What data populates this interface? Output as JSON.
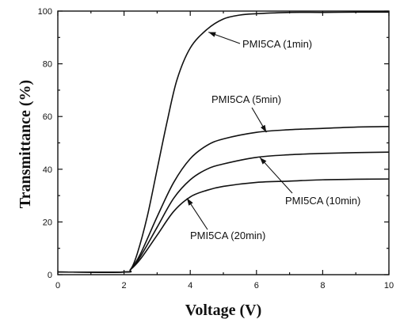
{
  "chart_data": {
    "type": "line",
    "xlabel": "Voltage (V)",
    "ylabel": "Transmittance (%)",
    "xlim": [
      0,
      10
    ],
    "ylim": [
      0,
      100
    ],
    "xticks": [
      0,
      2,
      4,
      6,
      8,
      10
    ],
    "yticks": [
      0,
      20,
      40,
      60,
      80,
      100
    ],
    "grid": false,
    "legend": "none",
    "series": [
      {
        "name": "PMI5CA (1min)",
        "x": [
          0,
          2.0,
          2.2,
          2.4,
          2.7,
          3.0,
          3.3,
          3.6,
          4.0,
          4.5,
          5.0,
          5.5,
          6.0,
          7.0,
          8.0,
          9.0,
          10.0
        ],
        "y": [
          1,
          1,
          2,
          8,
          22,
          40,
          58,
          74,
          86,
          93,
          97,
          98.5,
          99,
          99.5,
          99.5,
          99.6,
          99.6
        ]
      },
      {
        "name": "PMI5CA (5min)",
        "x": [
          0,
          2.0,
          2.2,
          2.5,
          3.0,
          3.5,
          4.0,
          4.5,
          5.0,
          6.0,
          7.0,
          8.0,
          9.0,
          10.0
        ],
        "y": [
          1,
          1,
          2,
          8,
          22,
          35,
          44,
          49,
          51.5,
          54,
          55,
          55.5,
          56,
          56.2
        ]
      },
      {
        "name": "PMI5CA (10min)",
        "x": [
          0,
          2.0,
          2.2,
          2.5,
          3.0,
          3.5,
          4.0,
          4.5,
          5.0,
          6.0,
          7.0,
          8.0,
          9.0,
          10.0
        ],
        "y": [
          1,
          1,
          2,
          7,
          18,
          29,
          36,
          40,
          42,
          44.5,
          45.5,
          46,
          46.3,
          46.5
        ]
      },
      {
        "name": "PMI5CA (20min)",
        "x": [
          0,
          2.0,
          2.2,
          2.5,
          3.0,
          3.5,
          4.0,
          4.5,
          5.0,
          6.0,
          7.0,
          8.0,
          9.0,
          10.0
        ],
        "y": [
          1,
          1,
          2,
          6,
          15,
          24,
          29.5,
          32,
          33.5,
          35,
          35.5,
          36,
          36.2,
          36.3
        ]
      }
    ],
    "annotations": [
      {
        "text": "PMI5CA (1min)",
        "series": 0,
        "point_x": 4.55,
        "point_y": 92
      },
      {
        "text": "PMI5CA (5min)",
        "series": 1,
        "point_x": 6.3,
        "point_y": 54
      },
      {
        "text": "PMI5CA (10min)",
        "series": 2,
        "point_x": 6.1,
        "point_y": 44.5
      },
      {
        "text": "PMI5CA (20min)",
        "series": 3,
        "point_x": 3.9,
        "point_y": 29
      }
    ]
  }
}
